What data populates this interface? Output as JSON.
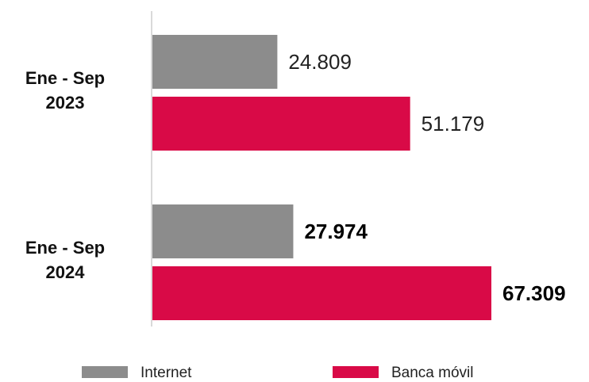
{
  "chart_data": {
    "type": "bar",
    "orientation": "horizontal",
    "categories": [
      "Ene - Sep 2023",
      "Ene - Sep 2024"
    ],
    "category_lines": [
      [
        "Ene - Sep",
        "2023"
      ],
      [
        "Ene - Sep",
        "2024"
      ]
    ],
    "series": [
      {
        "name": "Internet",
        "color": "#8c8c8c",
        "values": [
          24809,
          27974
        ],
        "labels": [
          "24.809",
          "27.974"
        ],
        "label_bold": [
          false,
          true
        ]
      },
      {
        "name": "Banca móvil",
        "color": "#d90a47",
        "values": [
          51179,
          67309
        ],
        "labels": [
          "51.179",
          "67.309"
        ],
        "label_bold": [
          false,
          true
        ]
      }
    ],
    "xlim": [
      0,
      75000
    ],
    "grid": false,
    "legend_position": "bottom"
  }
}
